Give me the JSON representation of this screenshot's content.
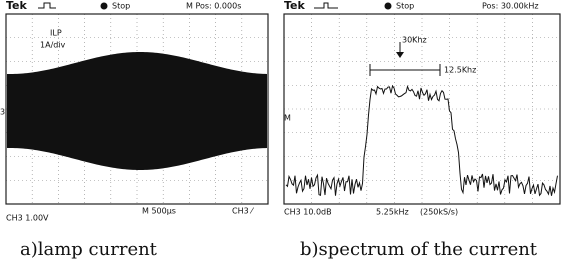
{
  "panels": [
    {
      "header": {
        "brand": "Tek",
        "status": "Stop",
        "position": "M Pos: 0.000s"
      },
      "labels": [
        "ILP",
        "1A/div",
        "3"
      ],
      "footer": {
        "channel": "CH3 1.00V",
        "timebase": "M 500µs",
        "trigger": "CH3 ⁄"
      },
      "caption": "a)lamp current"
    },
    {
      "header": {
        "brand": "Tek",
        "status": "Stop",
        "position": "Pos: 30.00kHz"
      },
      "annotations": [
        "30Khz",
        "12.5Khz",
        "M"
      ],
      "footer": {
        "channel": "CH3 10.0dB",
        "span": "5.25kHz",
        "rate": "(250kS/s)"
      },
      "caption": "b)spectrum of the current"
    }
  ]
}
